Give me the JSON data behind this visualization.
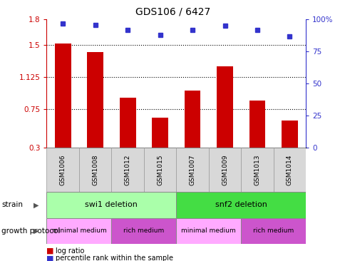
{
  "title": "GDS106 / 6427",
  "samples": [
    "GSM1006",
    "GSM1008",
    "GSM1012",
    "GSM1015",
    "GSM1007",
    "GSM1009",
    "GSM1013",
    "GSM1014"
  ],
  "log_ratio": [
    1.52,
    1.42,
    0.88,
    0.65,
    0.97,
    1.25,
    0.85,
    0.62
  ],
  "percentile_rank": [
    97,
    96,
    92,
    88,
    92,
    95,
    92,
    87
  ],
  "ylim_left": [
    0.3,
    1.8
  ],
  "ylim_right": [
    0,
    100
  ],
  "yticks_left": [
    0.3,
    0.75,
    1.125,
    1.5,
    1.8
  ],
  "ytick_labels_left": [
    "0.3",
    "0.75",
    "1.125",
    "1.5",
    "1.8"
  ],
  "yticks_right": [
    0,
    25,
    50,
    75,
    100
  ],
  "ytick_labels_right": [
    "0",
    "25",
    "50",
    "75",
    "100%"
  ],
  "hlines": [
    0.75,
    1.125,
    1.5
  ],
  "bar_color": "#cc0000",
  "dot_color": "#3333cc",
  "strain_groups": [
    {
      "label": "swi1 deletion",
      "start": 0,
      "end": 4,
      "color": "#aaffaa"
    },
    {
      "label": "snf2 deletion",
      "start": 4,
      "end": 8,
      "color": "#44dd44"
    }
  ],
  "protocol_groups": [
    {
      "label": "minimal medium",
      "start": 0,
      "end": 2,
      "color": "#ffaaff"
    },
    {
      "label": "rich medium",
      "start": 2,
      "end": 4,
      "color": "#cc55cc"
    },
    {
      "label": "minimal medium",
      "start": 4,
      "end": 6,
      "color": "#ffaaff"
    },
    {
      "label": "rich medium",
      "start": 6,
      "end": 8,
      "color": "#cc55cc"
    }
  ],
  "legend_items": [
    {
      "label": "log ratio",
      "color": "#cc0000"
    },
    {
      "label": "percentile rank within the sample",
      "color": "#3333cc"
    }
  ],
  "strain_label": "strain",
  "protocol_label": "growth protocol",
  "axis_color_left": "#cc0000",
  "axis_color_right": "#3333cc",
  "bar_width": 0.5,
  "dot_size": 35,
  "sample_bg": "#d8d8d8"
}
